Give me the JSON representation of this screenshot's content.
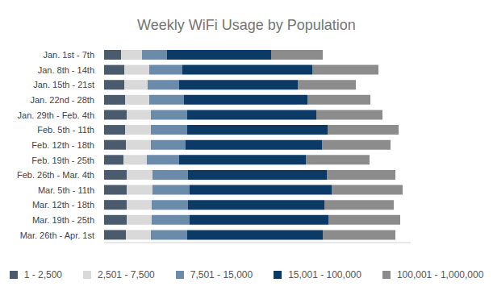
{
  "chart_data": {
    "type": "bar",
    "title": "Weekly WiFi Usage by Population",
    "orientation": "horizontal",
    "stacked": true,
    "grid": false,
    "legend": "bottom",
    "tick_labels": "y",
    "data_labels": false,
    "xlim": [
      0,
      380
    ],
    "categories": [
      "Jan. 1st - 7th",
      "Jan. 8th - 14th",
      "Jan. 15th - 21st",
      "Jan. 22nd - 28th",
      "Jan. 29th - Feb. 4th",
      "Feb. 5th - 11th",
      "Feb. 12th - 18th",
      "Feb. 19th - 25th",
      "Feb. 26th - Mar. 4th",
      "Mar. 5th - 11th",
      "Mar. 12th - 18th",
      "Mar. 19th - 25th",
      "Mar. 26th - Apr. 1st"
    ],
    "series": [
      {
        "name": "1 - 2,500",
        "color": "#4a5b6e",
        "values": [
          21,
          25,
          25,
          26,
          28,
          26,
          27,
          24,
          28,
          28,
          28,
          28,
          27
        ]
      },
      {
        "name": "2,501 - 7,500",
        "color": "#d9d9d9",
        "values": [
          26,
          31,
          29,
          30,
          30,
          32,
          31,
          29,
          32,
          32,
          31,
          31,
          31
        ]
      },
      {
        "name": "7,501 - 15,000",
        "color": "#6b8bab",
        "values": [
          31,
          41,
          39,
          43,
          45,
          45,
          43,
          40,
          44,
          46,
          45,
          47,
          45
        ]
      },
      {
        "name": "15,001 - 100,000",
        "color": "#0b3a66",
        "values": [
          129,
          161,
          147,
          153,
          160,
          174,
          169,
          157,
          172,
          176,
          169,
          172,
          168
        ]
      },
      {
        "name": "100,001 - 1,000,000",
        "color": "#8c8c8c",
        "values": [
          64,
          82,
          72,
          78,
          82,
          88,
          85,
          79,
          85,
          88,
          86,
          89,
          90
        ]
      }
    ]
  }
}
